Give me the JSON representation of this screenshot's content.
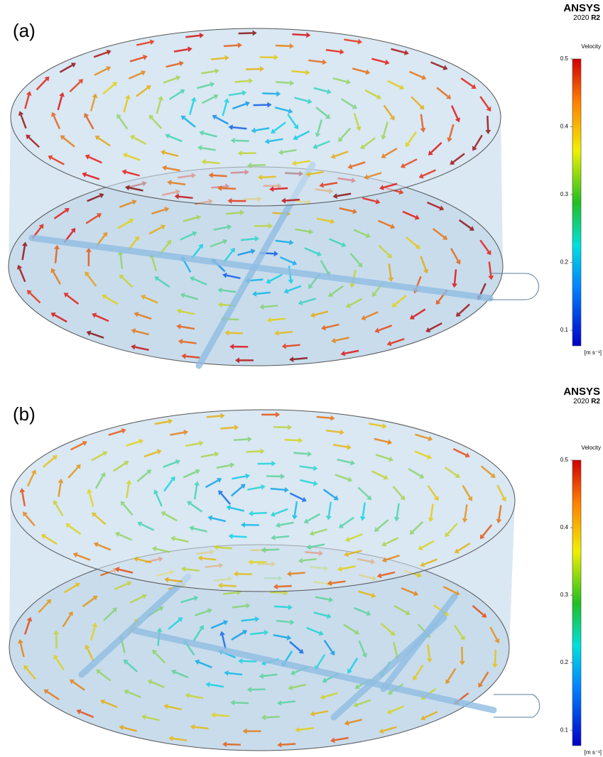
{
  "panels": [
    {
      "label": "(a)",
      "brand": "ANSYS",
      "version": "2020",
      "release": "R2",
      "colorbar": {
        "title": "Velocity",
        "range": [
          0.077,
          0.5
        ],
        "ticks": [
          0.5,
          0.4,
          0.3,
          0.2,
          0.1
        ],
        "unit": "[m s⁻¹]"
      }
    },
    {
      "label": "(b)",
      "brand": "ANSYS",
      "version": "2020",
      "release": "R2",
      "colorbar": {
        "title": "Velocity",
        "range": [
          0.077,
          0.5
        ],
        "ticks": [
          0.5,
          0.4,
          0.3,
          0.2,
          0.1
        ],
        "unit": "[m s⁻¹]"
      }
    }
  ]
}
